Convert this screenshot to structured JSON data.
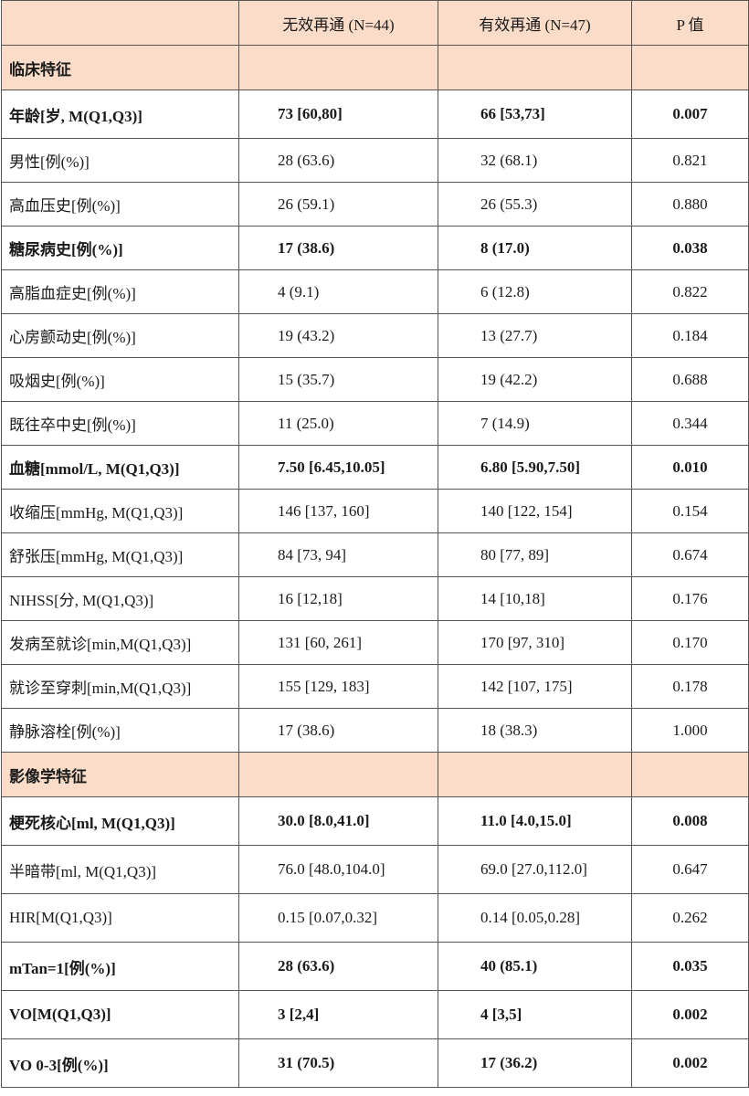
{
  "header": {
    "col1": "",
    "col2": "无效再通 (N=44)",
    "col3": "有效再通 (N=47)",
    "col4": "P 值"
  },
  "sections": [
    {
      "title": "临床特征",
      "rows": [
        {
          "label": "年龄[岁, M(Q1,Q3)]",
          "v1": "73 [60,80]",
          "v2": "66 [53,73]",
          "p": "0.007",
          "bold": true
        },
        {
          "label": "男性[例(%)]",
          "v1": "28 (63.6)",
          "v2": "32 (68.1)",
          "p": "0.821",
          "bold": false
        },
        {
          "label": "高血压史[例(%)]",
          "v1": "26 (59.1)",
          "v2": "26 (55.3)",
          "p": "0.880",
          "bold": false
        },
        {
          "label": "糖尿病史[例(%)]",
          "v1": "17 (38.6)",
          "v2": "8 (17.0)",
          "p": "0.038",
          "bold": true
        },
        {
          "label": "高脂血症史[例(%)]",
          "v1": "4 (9.1)",
          "v2": "6 (12.8)",
          "p": "0.822",
          "bold": false
        },
        {
          "label": "心房颤动史[例(%)]",
          "v1": "19 (43.2)",
          "v2": "13 (27.7)",
          "p": "0.184",
          "bold": false
        },
        {
          "label": "吸烟史[例(%)]",
          "v1": "15 (35.7)",
          "v2": "19 (42.2)",
          "p": "0.688",
          "bold": false
        },
        {
          "label": "既往卒中史[例(%)]",
          "v1": "11 (25.0)",
          "v2": "7 (14.9)",
          "p": "0.344",
          "bold": false
        },
        {
          "label": "血糖[mmol/L, M(Q1,Q3)]",
          "v1": "7.50 [6.45,10.05]",
          "v2": "6.80 [5.90,7.50]",
          "p": "0.010",
          "bold": true
        },
        {
          "label": "收缩压[mmHg, M(Q1,Q3)]",
          "v1": "146 [137, 160]",
          "v2": "140 [122, 154]",
          "p": "0.154",
          "bold": false
        },
        {
          "label": "舒张压[mmHg, M(Q1,Q3)]",
          "v1": "84 [73, 94]",
          "v2": "80 [77, 89]",
          "p": "0.674",
          "bold": false
        },
        {
          "label": "NIHSS[分, M(Q1,Q3)]",
          "v1": "16 [12,18]",
          "v2": "14 [10,18]",
          "p": "0.176",
          "bold": false
        },
        {
          "label": "发病至就诊[min,M(Q1,Q3)]",
          "v1": "131 [60, 261]",
          "v2": "170 [97, 310]",
          "p": "0.170",
          "bold": false
        },
        {
          "label": "就诊至穿刺[min,M(Q1,Q3)]",
          "v1": "155 [129, 183]",
          "v2": "142 [107, 175]",
          "p": "0.178",
          "bold": false
        },
        {
          "label": "静脉溶栓[例(%)]",
          "v1": "17 (38.6)",
          "v2": "18 (38.3)",
          "p": "1.000",
          "bold": false
        }
      ]
    },
    {
      "title": "影像学特征",
      "rows": [
        {
          "label": "梗死核心[ml, M(Q1,Q3)]",
          "v1": "30.0 [8.0,41.0]",
          "v2": "11.0 [4.0,15.0]",
          "p": "0.008",
          "bold": true
        },
        {
          "label": "半暗带[ml, M(Q1,Q3)]",
          "v1": "76.0 [48.0,104.0]",
          "v2": "69.0 [27.0,112.0]",
          "p": "0.647",
          "bold": false
        },
        {
          "label": "HIR[M(Q1,Q3)]",
          "v1": "0.15 [0.07,0.32]",
          "v2": "0.14 [0.05,0.28]",
          "p": "0.262",
          "bold": false
        },
        {
          "label": "mTan=1[例(%)]",
          "v1": "28 (63.6)",
          "v2": "40 (85.1)",
          "p": "0.035",
          "bold": true
        },
        {
          "label": "VO[M(Q1,Q3)]",
          "v1": "3 [2,4]",
          "v2": "4 [3,5]",
          "p": "0.002",
          "bold": true
        },
        {
          "label": "VO 0-3[例(%)]",
          "v1": "31 (70.5)",
          "v2": "17 (36.2)",
          "p": "0.002",
          "bold": true
        }
      ]
    }
  ]
}
